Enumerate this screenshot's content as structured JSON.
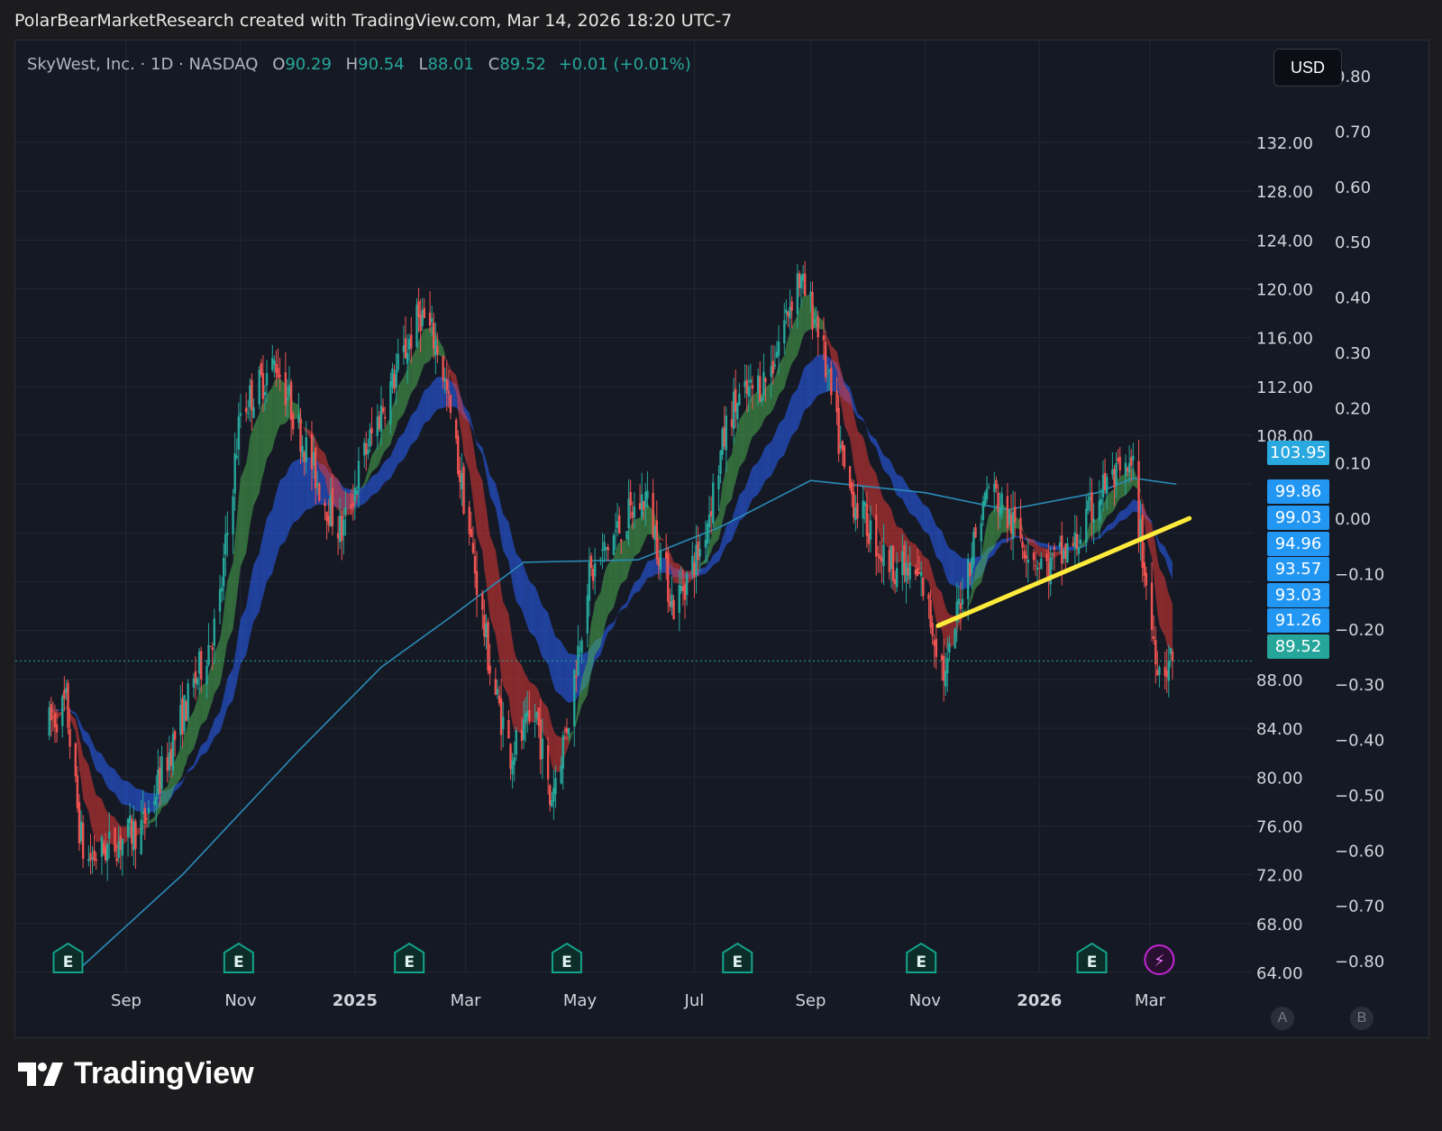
{
  "header": {
    "text": "PolarBearMarketResearch created with TradingView.com, Mar 14, 2026 18:20 UTC-7"
  },
  "legend": {
    "symbol": "SkyWest, Inc. · 1D · NASDAQ",
    "open_label": "O",
    "open": "90.29",
    "high_label": "H",
    "high": "90.54",
    "low_label": "L",
    "low": "88.01",
    "close_label": "C",
    "close": "89.52",
    "change": "+0.01 (+0.01%)"
  },
  "currency_button": "USD",
  "brand": {
    "name": "TradingView"
  },
  "scale_buttons": {
    "a": "A",
    "b": "B"
  },
  "colors": {
    "up": "#26a69a",
    "down": "#ef5350",
    "trendline": "#ffeb3b",
    "ma_line": "#2a8bb8",
    "ribbon_blue": "#2962ff",
    "tag_blue": "#2196f3",
    "tag_cyan": "#2aa8e0",
    "tag_last": "#26a69a",
    "earnings": "#0f766e",
    "dividend": "#c026d3"
  },
  "chart_data": {
    "type": "candlestick",
    "title": "SkyWest, Inc. · 1D · NASDAQ",
    "x_tick_labels": [
      "Sep",
      "Nov",
      "2025",
      "Mar",
      "May",
      "Jul",
      "Sep",
      "Nov",
      "2026",
      "Mar"
    ],
    "x_tick_dates": [
      "2024-09-01",
      "2024-11-01",
      "2025-01-01",
      "2025-03-01",
      "2025-05-01",
      "2025-07-01",
      "2025-09-01",
      "2025-11-01",
      "2026-01-01",
      "2026-03-01"
    ],
    "x_range": [
      "2024-07-20",
      "2026-04-01"
    ],
    "y_left": {
      "ticks": [
        "64.00",
        "68.00",
        "72.00",
        "76.00",
        "80.00",
        "84.00",
        "88.00",
        "108.00",
        "112.00",
        "116.00",
        "120.00",
        "124.00",
        "128.00",
        "132.00"
      ],
      "range": [
        64,
        132
      ]
    },
    "y_right": {
      "ticks": [
        "0.80",
        "0.70",
        "0.60",
        "0.50",
        "0.40",
        "0.30",
        "0.20",
        "0.10",
        "0.00",
        "−0.10",
        "−0.20",
        "−0.30",
        "−0.40",
        "−0.50",
        "−0.60",
        "−0.70",
        "−0.80"
      ],
      "range": [
        -0.8,
        0.8
      ]
    },
    "grid": true,
    "price_tags": [
      {
        "value": "103.95",
        "color": "cyan"
      },
      {
        "value": "99.86",
        "color": "blue"
      },
      {
        "value": "99.03",
        "color": "blue"
      },
      {
        "value": "94.96",
        "color": "blue"
      },
      {
        "value": "93.57",
        "color": "blue"
      },
      {
        "value": "93.03",
        "color": "blue"
      },
      {
        "value": "91.26",
        "color": "blue"
      },
      {
        "value": "89.52",
        "color": "last"
      }
    ],
    "last_price": 89.52,
    "ohlc_last": {
      "open": 90.29,
      "high": 90.54,
      "low": 88.01,
      "close": 89.52
    },
    "price_path": [
      [
        "2024-07-20",
        84
      ],
      [
        "2024-07-31",
        86
      ],
      [
        "2024-08-07",
        76
      ],
      [
        "2024-08-10",
        73
      ],
      [
        "2024-08-25",
        74.5
      ],
      [
        "2024-09-10",
        76
      ],
      [
        "2024-10-01",
        85
      ],
      [
        "2024-10-20",
        93
      ],
      [
        "2024-11-01",
        110
      ],
      [
        "2024-11-20",
        114
      ],
      [
        "2024-12-01",
        109
      ],
      [
        "2024-12-15",
        103
      ],
      [
        "2024-12-25",
        100
      ],
      [
        "2025-01-05",
        106
      ],
      [
        "2025-01-20",
        112
      ],
      [
        "2025-02-05",
        118
      ],
      [
        "2025-02-15",
        115
      ],
      [
        "2025-03-01",
        102
      ],
      [
        "2025-03-15",
        88
      ],
      [
        "2025-03-25",
        82
      ],
      [
        "2025-04-08",
        85
      ],
      [
        "2025-04-15",
        78
      ],
      [
        "2025-04-25",
        85
      ],
      [
        "2025-05-05",
        96
      ],
      [
        "2025-05-20",
        100
      ],
      [
        "2025-06-05",
        103
      ],
      [
        "2025-06-20",
        94
      ],
      [
        "2025-07-05",
        99
      ],
      [
        "2025-07-20",
        110
      ],
      [
        "2025-08-10",
        113
      ],
      [
        "2025-08-25",
        121
      ],
      [
        "2025-09-05",
        117
      ],
      [
        "2025-09-20",
        104
      ],
      [
        "2025-10-10",
        98
      ],
      [
        "2025-10-30",
        96
      ],
      [
        "2025-11-12",
        88
      ],
      [
        "2025-11-20",
        95
      ],
      [
        "2025-12-05",
        104
      ],
      [
        "2025-12-20",
        100
      ],
      [
        "2026-01-05",
        97
      ],
      [
        "2026-01-20",
        99
      ],
      [
        "2026-02-05",
        104
      ],
      [
        "2026-02-20",
        105
      ],
      [
        "2026-03-01",
        93
      ],
      [
        "2026-03-06",
        89
      ],
      [
        "2026-03-13",
        89.52
      ]
    ],
    "moving_average": [
      [
        "2024-08-05",
        64
      ],
      [
        "2024-10-01",
        72
      ],
      [
        "2024-12-01",
        82
      ],
      [
        "2025-01-15",
        89
      ],
      [
        "2025-02-20",
        93
      ],
      [
        "2025-04-01",
        97.6
      ],
      [
        "2025-06-01",
        97.8
      ],
      [
        "2025-07-15",
        100.5
      ],
      [
        "2025-09-01",
        104.3
      ],
      [
        "2025-11-01",
        103.3
      ],
      [
        "2025-12-15",
        101.9
      ],
      [
        "2026-02-01",
        103.3
      ],
      [
        "2026-02-20",
        104.5
      ],
      [
        "2026-03-15",
        104
      ]
    ],
    "trendline": [
      [
        "2025-11-08",
        92.4
      ],
      [
        "2026-03-22",
        101.2
      ]
    ],
    "events": [
      {
        "type": "earnings",
        "label": "E",
        "date": "2024-08-01"
      },
      {
        "type": "earnings",
        "label": "E",
        "date": "2024-10-31"
      },
      {
        "type": "earnings",
        "label": "E",
        "date": "2025-01-30"
      },
      {
        "type": "earnings",
        "label": "E",
        "date": "2025-04-24"
      },
      {
        "type": "earnings",
        "label": "E",
        "date": "2025-07-24"
      },
      {
        "type": "earnings",
        "label": "E",
        "date": "2025-10-30"
      },
      {
        "type": "earnings",
        "label": "E",
        "date": "2026-01-29"
      },
      {
        "type": "dividend",
        "label": "⚡",
        "date": "2026-03-06"
      }
    ]
  }
}
